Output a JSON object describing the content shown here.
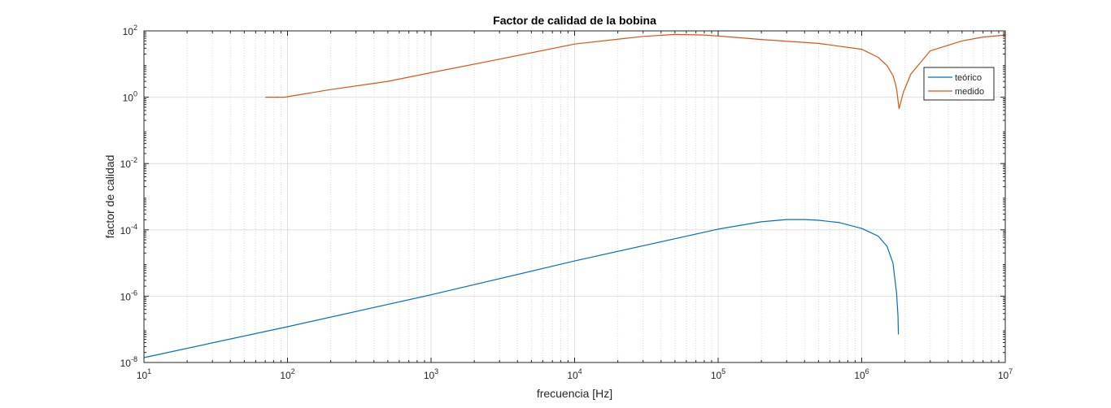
{
  "chart_data": {
    "type": "line",
    "title": "Factor de calidad de la bobina",
    "xlabel": "frecuencia [Hz]",
    "ylabel": "factor de calidad",
    "x_scale": "log",
    "y_scale": "log",
    "xlim": [
      10,
      10000000
    ],
    "ylim": [
      1e-08,
      100
    ],
    "x_ticks": [
      {
        "value": 10,
        "base": "10",
        "exp": "1"
      },
      {
        "value": 100,
        "base": "10",
        "exp": "2"
      },
      {
        "value": 1000,
        "base": "10",
        "exp": "3"
      },
      {
        "value": 10000,
        "base": "10",
        "exp": "4"
      },
      {
        "value": 100000,
        "base": "10",
        "exp": "5"
      },
      {
        "value": 1000000,
        "base": "10",
        "exp": "6"
      },
      {
        "value": 10000000,
        "base": "10",
        "exp": "7"
      }
    ],
    "y_ticks": [
      {
        "value": 1e-08,
        "base": "10",
        "exp": "-8"
      },
      {
        "value": 1e-06,
        "base": "10",
        "exp": "-6"
      },
      {
        "value": 0.0001,
        "base": "10",
        "exp": "-4"
      },
      {
        "value": 0.01,
        "base": "10",
        "exp": "-2"
      },
      {
        "value": 1,
        "base": "10",
        "exp": "0"
      },
      {
        "value": 100,
        "base": "10",
        "exp": "2"
      }
    ],
    "grid": true,
    "minor_grid_x": true,
    "legend_position": "top-right",
    "series": [
      {
        "name": "teórico",
        "color": "#0072BD",
        "x": [
          10,
          100,
          1000,
          10000,
          100000,
          200000,
          300000,
          400000,
          500000,
          700000,
          1000000,
          1300000,
          1500000,
          1650000,
          1750000,
          1790000,
          1800000
        ],
        "y": [
          1.4e-08,
          1.2e-07,
          1.1e-06,
          1.15e-05,
          0.000105,
          0.000175,
          0.000205,
          0.000205,
          0.000195,
          0.000165,
          0.00011,
          6.5e-05,
          3.2e-05,
          1e-05,
          1.2e-06,
          2.5e-07,
          7e-08
        ]
      },
      {
        "name": "medido",
        "color": "#D95319",
        "x": [
          70,
          95,
          200,
          500,
          1000,
          3000,
          10000,
          30000,
          50000,
          80000,
          100000,
          200000,
          500000,
          1000000,
          1300000,
          1500000,
          1650000,
          1720000,
          1760000,
          1790000,
          1820000,
          1850000,
          1950000,
          2200000,
          3000000,
          5000000,
          7000000,
          10000000
        ],
        "y": [
          1.0,
          1.0,
          1.7,
          3.0,
          5.5,
          14,
          40,
          68,
          78,
          75,
          70,
          55,
          42,
          28,
          16,
          9,
          4.5,
          2.5,
          1.5,
          0.8,
          0.45,
          0.6,
          1.4,
          5,
          25,
          50,
          65,
          75
        ]
      }
    ]
  }
}
